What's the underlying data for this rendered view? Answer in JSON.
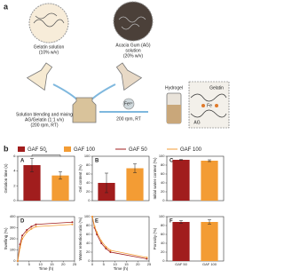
{
  "panel_a": {
    "label": "a",
    "gelatin_solution": [
      "Gelatin solution",
      "(10% w/v)"
    ],
    "acacia_solution": [
      "Acacia Gum (AG)",
      "solution",
      "(20% w/v)"
    ],
    "blending": [
      "Solution blending and mixing",
      "AG/Gelatin (1:1 v/v)",
      "(200 rpm, RT)"
    ],
    "ion": "Fe³⁺",
    "stirring": "200 rpm, RT",
    "hydrogel": "Hydrogel",
    "network": [
      "Gelatin",
      "AG",
      "Fe"
    ]
  },
  "panel_b": {
    "label": "b",
    "colors": [
      "#a11d1d",
      "#f39c34"
    ],
    "legend": {
      "bars": [
        "GAF 50",
        "GAF 100"
      ],
      "lines": [
        "GAF 50",
        "GAF 100"
      ]
    },
    "charts": [
      {
        "type": "bar",
        "label": "A",
        "ylabel": "Gelation time (s)",
        "values": [
          4.8,
          3.4
        ],
        "errors": [
          0.9,
          0.5
        ],
        "ylim": [
          0,
          6
        ],
        "yticks": [
          0,
          2,
          4,
          6
        ],
        "annotation": "*"
      },
      {
        "type": "bar",
        "label": "B",
        "ylabel": "Gel content (%)",
        "values": [
          40,
          73
        ],
        "errors": [
          22,
          10
        ],
        "ylim": [
          0,
          100
        ],
        "yticks": [
          0,
          20,
          40,
          60,
          80,
          100
        ]
      },
      {
        "type": "bar",
        "label": "C",
        "ylabel": "Initial water content (%)",
        "values": [
          92,
          90
        ],
        "errors": [
          1,
          2
        ],
        "ylim": [
          0,
          100
        ],
        "yticks": [
          0,
          20,
          40,
          60,
          80,
          100
        ]
      },
      {
        "type": "line",
        "label": "D",
        "ylabel": "Swelling (%)",
        "xlabel": "Time (h)",
        "x": [
          0,
          1,
          2,
          4,
          6,
          8,
          24
        ],
        "series": [
          {
            "name": "GAF 50",
            "values": [
              0,
              150,
              230,
              280,
              310,
              330,
              350
            ]
          },
          {
            "name": "GAF 100",
            "values": [
              0,
              120,
              200,
              260,
              290,
              310,
              330
            ]
          }
        ],
        "xlim": [
          0,
          25
        ],
        "xticks": [
          0,
          5,
          10,
          15,
          20,
          25
        ],
        "ylim": [
          0,
          400
        ],
        "yticks": [
          0,
          100,
          200,
          300,
          400
        ]
      },
      {
        "type": "line",
        "label": "E",
        "ylabel": "Water retention ratio (%)",
        "xlabel": "Time (h)",
        "x": [
          0,
          1,
          2,
          4,
          6,
          8,
          24
        ],
        "series": [
          {
            "name": "GAF 50",
            "values": [
              100,
              75,
              60,
              40,
              28,
              20,
              5
            ]
          },
          {
            "name": "GAF 100",
            "values": [
              100,
              78,
              65,
              45,
              32,
              24,
              8
            ]
          }
        ],
        "xlim": [
          0,
          25
        ],
        "xticks": [
          0,
          5,
          10,
          15,
          20,
          25
        ],
        "ylim": [
          0,
          100
        ],
        "yticks": [
          0,
          20,
          40,
          60,
          80,
          100
        ]
      },
      {
        "type": "bar",
        "label": "F",
        "ylabel": "Porosity (%)",
        "categories": [
          "GAF 50",
          "GAF 100"
        ],
        "values": [
          88,
          88
        ],
        "errors": [
          3,
          5
        ],
        "ylim": [
          0,
          100
        ],
        "yticks": [
          0,
          20,
          40,
          60,
          80,
          100
        ]
      }
    ]
  }
}
